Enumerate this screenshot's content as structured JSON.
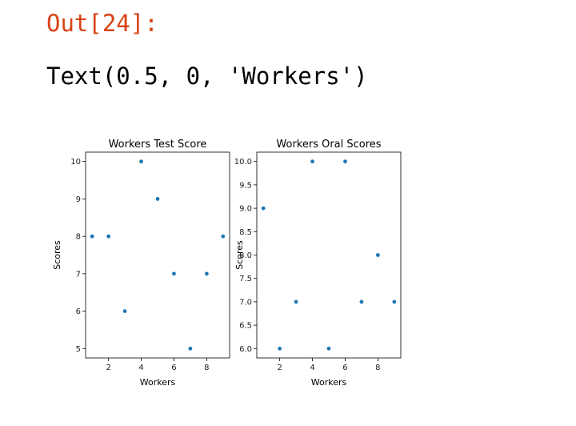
{
  "cell": {
    "prompt": "Out[24]:",
    "output": "Text(0.5, 0, 'Workers')"
  },
  "chart_data": [
    {
      "type": "scatter",
      "title": "Workers Test Score",
      "xlabel": "Workers",
      "ylabel": "Scores",
      "x": [
        1,
        2,
        3,
        4,
        5,
        6,
        7,
        8,
        9
      ],
      "y": [
        8,
        8,
        6,
        10,
        9,
        7,
        5,
        7,
        8
      ],
      "xlim": [
        0.6,
        9.4
      ],
      "ylim": [
        4.75,
        10.25
      ],
      "xticks": [
        2,
        4,
        6,
        8
      ],
      "yticks": [
        5,
        6,
        7,
        8,
        9,
        10
      ],
      "ytick_labels": [
        "5",
        "6",
        "7",
        "8",
        "9",
        "10"
      ],
      "color": "#1f77b4",
      "grid": false
    },
    {
      "type": "scatter",
      "title": "Workers Oral Scores",
      "xlabel": "Workers",
      "ylabel": "Scores",
      "x": [
        1,
        2,
        3,
        4,
        5,
        6,
        7,
        8,
        9
      ],
      "y": [
        9,
        6,
        7,
        10,
        6,
        10,
        7,
        8,
        7
      ],
      "xlim": [
        0.6,
        9.4
      ],
      "ylim": [
        5.8,
        10.2
      ],
      "xticks": [
        2,
        4,
        6,
        8
      ],
      "yticks": [
        6.0,
        6.5,
        7.0,
        7.5,
        8.0,
        8.5,
        9.0,
        9.5,
        10.0
      ],
      "ytick_labels": [
        "6.0",
        "6.5",
        "7.0",
        "7.5",
        "8.0",
        "8.5",
        "9.0",
        "9.5",
        "10.0"
      ],
      "color": "#1f77b4",
      "grid": false
    }
  ]
}
